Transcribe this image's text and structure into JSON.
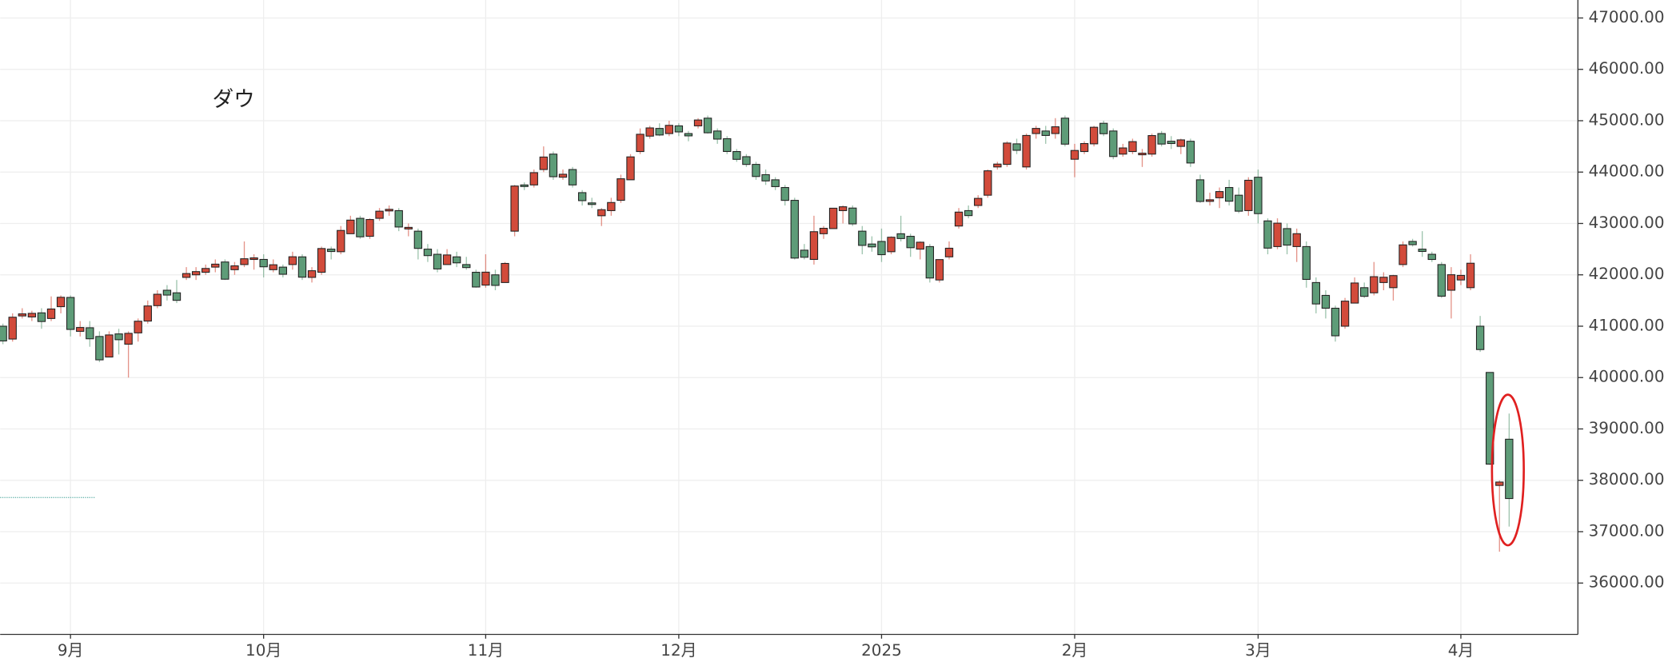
{
  "chart_data": {
    "type": "candlestick",
    "title": "ダウ",
    "categories": [
      null,
      null,
      null,
      null,
      null,
      null,
      null,
      "9月",
      null,
      null,
      null,
      null,
      null,
      null,
      null,
      null,
      null,
      null,
      null,
      null,
      null,
      null,
      null,
      null,
      null,
      null,
      null,
      "10月",
      null,
      null,
      null,
      null,
      null,
      null,
      null,
      null,
      null,
      null,
      null,
      null,
      null,
      null,
      null,
      null,
      null,
      null,
      null,
      null,
      null,
      null,
      "11月",
      null,
      null,
      null,
      null,
      null,
      null,
      null,
      null,
      null,
      null,
      null,
      null,
      null,
      null,
      null,
      null,
      null,
      null,
      null,
      "12月",
      null,
      null,
      null,
      null,
      null,
      null,
      null,
      null,
      null,
      null,
      null,
      null,
      null,
      null,
      null,
      null,
      null,
      null,
      null,
      null,
      "2025",
      null,
      null,
      null,
      null,
      null,
      null,
      null,
      null,
      null,
      null,
      null,
      null,
      null,
      null,
      null,
      null,
      null,
      null,
      null,
      "2月",
      null,
      null,
      null,
      null,
      null,
      null,
      null,
      null,
      null,
      null,
      null,
      null,
      null,
      null,
      null,
      null,
      null,
      null,
      "3月",
      null,
      null,
      null,
      null,
      null,
      null,
      null,
      null,
      null,
      null,
      null,
      null,
      null,
      null,
      null,
      null,
      null,
      null,
      null,
      null,
      "4月",
      null,
      null,
      null,
      null,
      null
    ],
    "open": [
      41000,
      40750,
      41200,
      41180,
      41260,
      41150,
      41380,
      41560,
      40900,
      40970,
      40800,
      40400,
      40850,
      40650,
      40870,
      41100,
      41400,
      41700,
      41650,
      41950,
      42000,
      42050,
      42150,
      42250,
      42100,
      42200,
      42300,
      42300,
      42100,
      42150,
      42200,
      42350,
      41950,
      42050,
      42500,
      42450,
      42800,
      43100,
      42750,
      43100,
      43250,
      43250,
      42900,
      42850,
      42500,
      42400,
      42200,
      42350,
      42200,
      42050,
      41800,
      42000,
      41850,
      42850,
      43750,
      43750,
      44050,
      44350,
      43900,
      44050,
      43600,
      43400,
      43150,
      43250,
      43450,
      43850,
      44400,
      44700,
      44850,
      44750,
      44900,
      44750,
      44900,
      45050,
      44800,
      44650,
      44400,
      44300,
      44150,
      43950,
      43850,
      43700,
      43450,
      42480,
      42300,
      42800,
      42900,
      43250,
      43300,
      42850,
      42600,
      42650,
      42450,
      42800,
      42750,
      42500,
      42550,
      41900,
      42350,
      42950,
      43250,
      43350,
      43550,
      44100,
      44150,
      44550,
      44100,
      44750,
      44800,
      44750,
      45050,
      44250,
      44400,
      44550,
      44950,
      44800,
      44350,
      44400,
      44350,
      44350,
      44750,
      44600,
      44500,
      44600,
      43850,
      43450,
      43500,
      43700,
      43550,
      43250,
      43900,
      43050,
      42550,
      42900,
      42550,
      42550,
      41850,
      41600,
      41350,
      41000,
      41450,
      41750,
      41650,
      41850,
      41750,
      42200,
      42650,
      42500,
      42400,
      42200,
      41700,
      41900,
      41750,
      41000,
      40100,
      37900,
      38800
    ],
    "high": [
      41050,
      41250,
      41350,
      41300,
      41350,
      41580,
      41600,
      41600,
      41100,
      41100,
      40900,
      40900,
      40950,
      40900,
      41150,
      41500,
      41700,
      41800,
      41900,
      42150,
      42150,
      42200,
      42300,
      42300,
      42250,
      42650,
      42400,
      42400,
      42300,
      42200,
      42450,
      42400,
      42150,
      42550,
      42550,
      42950,
      43150,
      43150,
      43100,
      43300,
      43350,
      43300,
      43000,
      42900,
      42600,
      42500,
      42500,
      42450,
      42350,
      42100,
      42400,
      42100,
      42250,
      43750,
      43800,
      44050,
      44500,
      44400,
      44050,
      44100,
      43650,
      43500,
      43300,
      43500,
      43950,
      44350,
      44850,
      44900,
      44950,
      45000,
      44950,
      44800,
      45050,
      45100,
      44850,
      44700,
      44450,
      44350,
      44200,
      44050,
      43900,
      43750,
      43500,
      42600,
      43150,
      42950,
      43300,
      43350,
      43350,
      42950,
      42750,
      42900,
      42750,
      43150,
      42800,
      42650,
      42600,
      42300,
      42650,
      43300,
      43350,
      43550,
      44050,
      44200,
      44600,
      44650,
      44750,
      44900,
      44900,
      45050,
      45100,
      44550,
      44600,
      44900,
      45000,
      44850,
      44550,
      44650,
      44450,
      44750,
      44800,
      44700,
      44650,
      44650,
      43950,
      43600,
      43700,
      43850,
      43700,
      43900,
      44050,
      43100,
      43100,
      43000,
      42900,
      42650,
      41950,
      41700,
      41400,
      41550,
      41950,
      41850,
      42250,
      42050,
      42000,
      42650,
      42700,
      42850,
      42450,
      42250,
      42150,
      42100,
      42400,
      41200,
      40100,
      38000,
      39300
    ],
    "low": [
      40650,
      40700,
      41150,
      41100,
      40950,
      41100,
      41250,
      40800,
      40800,
      40600,
      40300,
      40400,
      40450,
      40000,
      40700,
      41050,
      41350,
      41500,
      41450,
      41900,
      41900,
      42000,
      42050,
      41900,
      42000,
      42150,
      42100,
      41950,
      42050,
      41950,
      42100,
      41900,
      41850,
      42000,
      42300,
      42400,
      42800,
      42700,
      42700,
      43050,
      43150,
      42850,
      42750,
      42300,
      42250,
      42050,
      42200,
      42150,
      42100,
      41750,
      41750,
      41700,
      41850,
      42750,
      43650,
      43700,
      44000,
      43850,
      43850,
      43700,
      43350,
      43300,
      42950,
      43150,
      43400,
      43850,
      44350,
      44650,
      44700,
      44700,
      44700,
      44600,
      44850,
      44750,
      44550,
      44350,
      44200,
      44100,
      43850,
      43750,
      43650,
      43350,
      42300,
      42300,
      42200,
      42700,
      42900,
      43000,
      42950,
      42400,
      42450,
      42250,
      42400,
      42650,
      42350,
      42300,
      41850,
      41850,
      42300,
      42900,
      43100,
      43300,
      43500,
      44050,
      44100,
      44350,
      44050,
      44650,
      44550,
      44650,
      44500,
      43900,
      44350,
      44500,
      44700,
      44250,
      44300,
      44350,
      44100,
      44300,
      44500,
      44450,
      44350,
      44100,
      43400,
      43350,
      43300,
      43350,
      43200,
      43150,
      43000,
      42400,
      42500,
      42400,
      42250,
      41750,
      41250,
      41150,
      40700,
      40950,
      41450,
      41550,
      41600,
      41700,
      41500,
      42150,
      42550,
      42350,
      42250,
      41550,
      41150,
      41800,
      41700,
      40500,
      38300,
      36611,
      37100
    ],
    "close": [
      40713,
      41175,
      41240,
      41250,
      41091,
      41335,
      41563,
      40937,
      40975,
      40755,
      40345,
      40830,
      40737,
      40861,
      41097,
      41394,
      41622,
      41606,
      41503,
      42025,
      42063,
      42124,
      42208,
      41915,
      42175,
      42313,
      42330,
      42156,
      42196,
      42011,
      42352,
      41954,
      42080,
      42512,
      42454,
      42864,
      43065,
      42740,
      43077,
      43239,
      43275,
      42931,
      42924,
      42514,
      42374,
      42114,
      42387,
      42233,
      42141,
      41763,
      42052,
      41794,
      42222,
      43729,
      43729,
      43989,
      44293,
      43910,
      43958,
      43750,
      43444,
      43389,
      43268,
      43408,
      43870,
      44296,
      44736,
      44860,
      44722,
      44910,
      44782,
      44705,
      45014,
      44765,
      44642,
      44401,
      44248,
      44149,
      43914,
      43828,
      43717,
      43449,
      42326,
      42342,
      42840,
      42906,
      43297,
      43325,
      42992,
      42573,
      42544,
      42392,
      42732,
      42706,
      42528,
      42635,
      41938,
      42297,
      42518,
      43221,
      43153,
      43488,
      44025,
      44156,
      44565,
      44424,
      44713,
      44850,
      44713,
      44882,
      44544,
      44421,
      44556,
      44873,
      44747,
      44303,
      44470,
      44593,
      44368,
      44711,
      44546,
      44556,
      44627,
      44177,
      43428,
      43461,
      43621,
      43433,
      43239,
      43841,
      43191,
      42520,
      43006,
      42579,
      42801,
      41911,
      41433,
      41350,
      40813,
      41488,
      41841,
      41581,
      41964,
      41953,
      41985,
      42583,
      42587,
      42455,
      42299,
      41584,
      42002,
      41989,
      42226,
      40545,
      38315,
      37966,
      37645
    ],
    "up_color": "#d24b3b",
    "down_color": "#5e9c78",
    "ylim": [
      35000,
      47350
    ],
    "yticks": [
      {
        "value": 36000,
        "label": "36000.00"
      },
      {
        "value": 37000,
        "label": "37000.00"
      },
      {
        "value": 38000,
        "label": "38000.00"
      },
      {
        "value": 39000,
        "label": "39000.00"
      },
      {
        "value": 40000,
        "label": "40000.00"
      },
      {
        "value": 41000,
        "label": "41000.00"
      },
      {
        "value": 42000,
        "label": "42000.00"
      },
      {
        "value": 43000,
        "label": "43000.00"
      },
      {
        "value": 44000,
        "label": "44000.00"
      },
      {
        "value": 45000,
        "label": "45000.00"
      },
      {
        "value": 46000,
        "label": "46000.00"
      },
      {
        "value": 47000,
        "label": "47000.00"
      }
    ],
    "grid": true,
    "y_axis_side": "right"
  }
}
